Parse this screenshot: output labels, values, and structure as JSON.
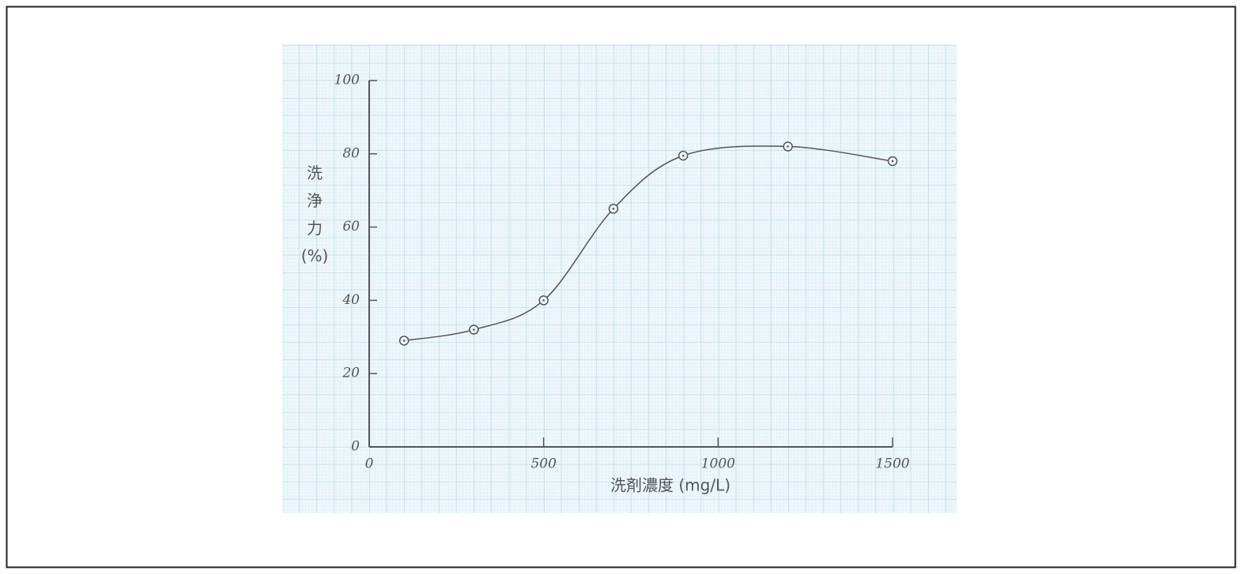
{
  "chart_data": {
    "type": "line",
    "x_label": "洗剤濃度 (mg/L)",
    "y_label": "洗浄力 (%)",
    "x": [
      100,
      300,
      500,
      700,
      900,
      1200,
      1500
    ],
    "values": [
      29,
      32,
      40,
      65,
      79.5,
      82,
      78
    ],
    "color": "#555555",
    "xlim": [
      0,
      1500
    ],
    "xticks": [
      0,
      500,
      1000,
      1500
    ],
    "ylim": [
      0,
      100
    ],
    "yticks": [
      0,
      20,
      40,
      60,
      80,
      100
    ],
    "grid": false
  }
}
